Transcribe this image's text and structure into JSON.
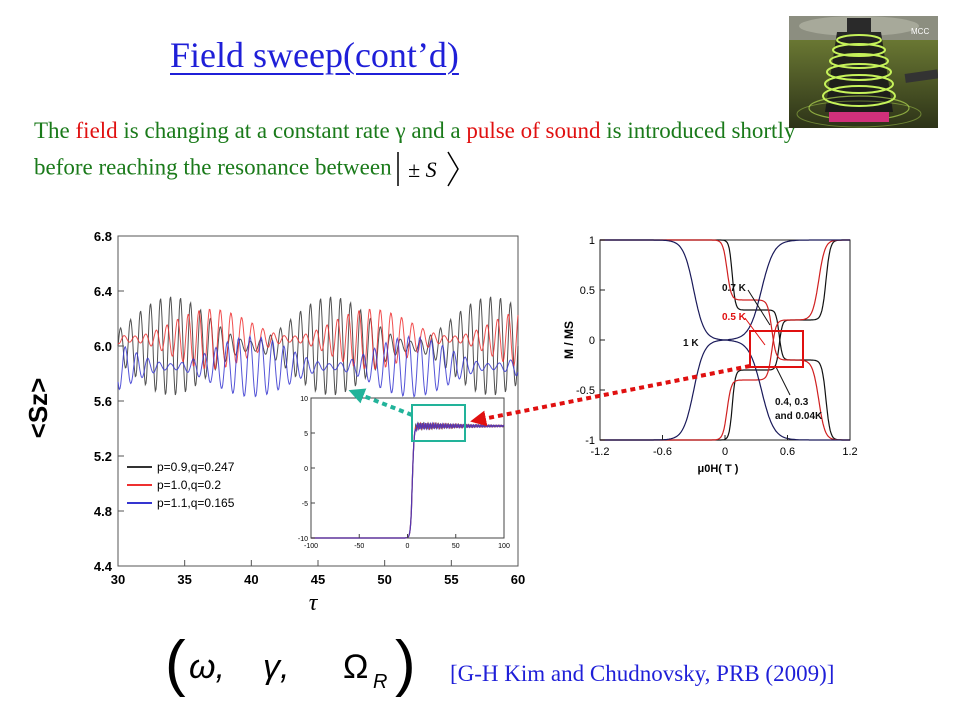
{
  "slide": {
    "title": "Field sweep(cont’d)",
    "intro": {
      "p1": "The ",
      "field": "field",
      "p2": " is changing at a constant rate γ and a ",
      "pulse": "pulse of sound",
      "p3": " is introduced shortly before reaching the resonance between",
      "ket": "± S"
    },
    "params": {
      "omega": "ω,",
      "gamma": "γ,",
      "Omega": "Ω",
      "sub": "R"
    },
    "citation": "[G-H Kim and Chudnovsky, PRB (2009)]"
  },
  "colors": {
    "title": "#1f1fd8",
    "text": "#1a7a1a",
    "highlight": "#e01010",
    "citation": "#1f1fd8",
    "arrow_red": "#e01010",
    "arrow_green": "#22b39a"
  },
  "photo": {
    "icon": "coil-magnet-photo",
    "caption": "MCC"
  },
  "chart_data": [
    {
      "type": "line",
      "xlabel": "τ",
      "ylabel": "<Sz>",
      "xlim": [
        30,
        60
      ],
      "ylim": [
        4.4,
        6.8
      ],
      "xticks": [
        "30",
        "35",
        "40",
        "45",
        "50",
        "55",
        "60"
      ],
      "yticks": [
        "4.4",
        "4.8",
        "5.2",
        "5.6",
        "6.0",
        "6.4",
        "6.8"
      ],
      "legend_placement": "bottom-left",
      "series": [
        {
          "name": "p=0.9,q=0.247",
          "color": "#333333",
          "center": 6.0,
          "amplitude": 0.36,
          "period": 0.75
        },
        {
          "name": "p=1.0,q=0.2",
          "color": "#ee3030",
          "center": 6.05,
          "amplitude": 0.22,
          "period": 0.8
        },
        {
          "name": "p=1.1,q=0.165",
          "color": "#3535d0",
          "center": 5.85,
          "amplitude": 0.22,
          "period": 0.85
        }
      ]
    },
    {
      "type": "line",
      "xlim": [
        -100,
        100
      ],
      "ylim": [
        -10,
        10
      ],
      "xticks": [
        "-100",
        "-50",
        "0",
        "50",
        "100"
      ],
      "yticks": [
        "-10",
        "-5",
        "0",
        "5",
        "10"
      ],
      "series": [
        {
          "shape": "step",
          "low": -10,
          "high": 6,
          "step_at": 5
        }
      ]
    },
    {
      "type": "line",
      "xlabel": "μ0H( T )",
      "ylabel": "M / MS",
      "xlim": [
        -1.2,
        1.2
      ],
      "ylim": [
        -1,
        1
      ],
      "xticks": [
        "-1.2",
        "-0.6",
        "0",
        "0.6",
        "1.2"
      ],
      "yticks": [
        "1",
        "0.5",
        "0",
        "-0.5",
        "-1"
      ],
      "annotations": [
        "0.7 K",
        "0.5 K",
        "1 K",
        "0.4,  0.3",
        "and 0.04K"
      ]
    }
  ]
}
